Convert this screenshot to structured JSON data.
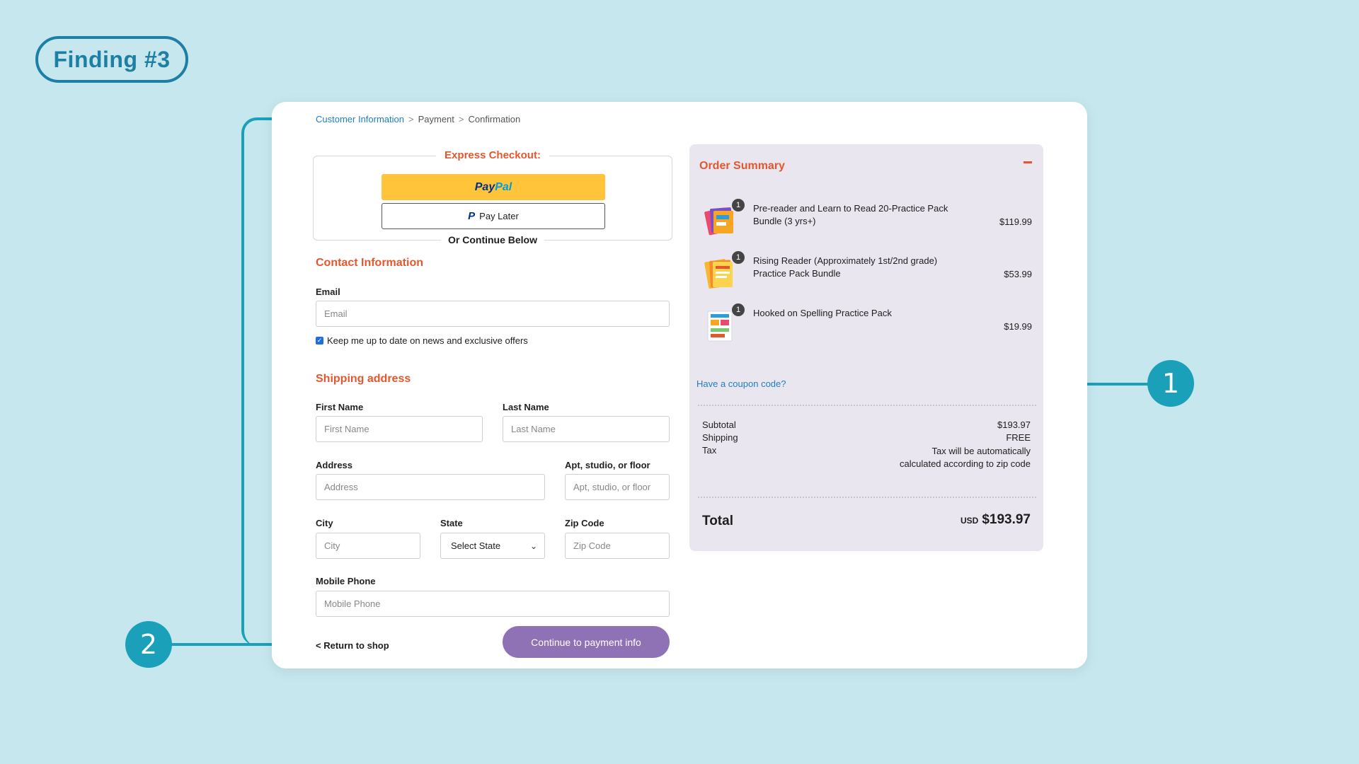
{
  "finding_label": "Finding #3",
  "annotations": {
    "badge_1": "1",
    "badge_2": "2"
  },
  "breadcrumb": {
    "steps": [
      "Customer Information",
      "Payment",
      "Confirmation"
    ],
    "separator": ">"
  },
  "express_checkout": {
    "title": "Express Checkout:",
    "paypal_part1": "Pay",
    "paypal_part2": "Pal",
    "pay_later_label": "Pay Later",
    "or_continue": "Or Continue Below"
  },
  "contact": {
    "title": "Contact Information",
    "email_label": "Email",
    "email_placeholder": "Email",
    "newsletter_label": "Keep me up to date on news and exclusive offers",
    "newsletter_checked": true
  },
  "shipping": {
    "title": "Shipping address",
    "first_name_label": "First Name",
    "first_name_placeholder": "First Name",
    "last_name_label": "Last Name",
    "last_name_placeholder": "Last Name",
    "address_label": "Address",
    "address_placeholder": "Address",
    "apt_label": "Apt, studio, or floor",
    "apt_placeholder": "Apt, studio, or floor",
    "city_label": "City",
    "city_placeholder": "City",
    "state_label": "State",
    "state_value": "Select State",
    "zip_label": "Zip Code",
    "zip_placeholder": "Zip Code",
    "phone_label": "Mobile Phone",
    "phone_placeholder": "Mobile Phone"
  },
  "actions": {
    "return_label": "< Return to shop",
    "continue_label": "Continue to payment info"
  },
  "order_summary": {
    "title": "Order Summary",
    "items": [
      {
        "name": "Pre-reader and Learn to Read 20-Practice Pack Bundle (3 yrs+)",
        "qty": "1",
        "price": "$119.99"
      },
      {
        "name": "Rising Reader (Approximately 1st/2nd grade) Practice Pack Bundle",
        "qty": "1",
        "price": "$53.99"
      },
      {
        "name": "Hooked on Spelling Practice Pack",
        "qty": "1",
        "price": "$19.99"
      }
    ],
    "coupon_label": "Have a coupon code?",
    "subtotal_label": "Subtotal",
    "subtotal_value": "$193.97",
    "shipping_label": "Shipping",
    "shipping_value": "FREE",
    "tax_label": "Tax",
    "tax_value": "Tax will be automatically calculated according to zip code",
    "total_label": "Total",
    "total_currency": "USD",
    "total_value": "$193.97"
  },
  "colors": {
    "background": "#c6e7ee",
    "accent_orange": "#e4572e",
    "link_blue": "#1e7fc0",
    "annotation_teal": "#1aa1b9",
    "button_purple": "#8f72b6",
    "paypal_yellow": "#ffc439"
  }
}
